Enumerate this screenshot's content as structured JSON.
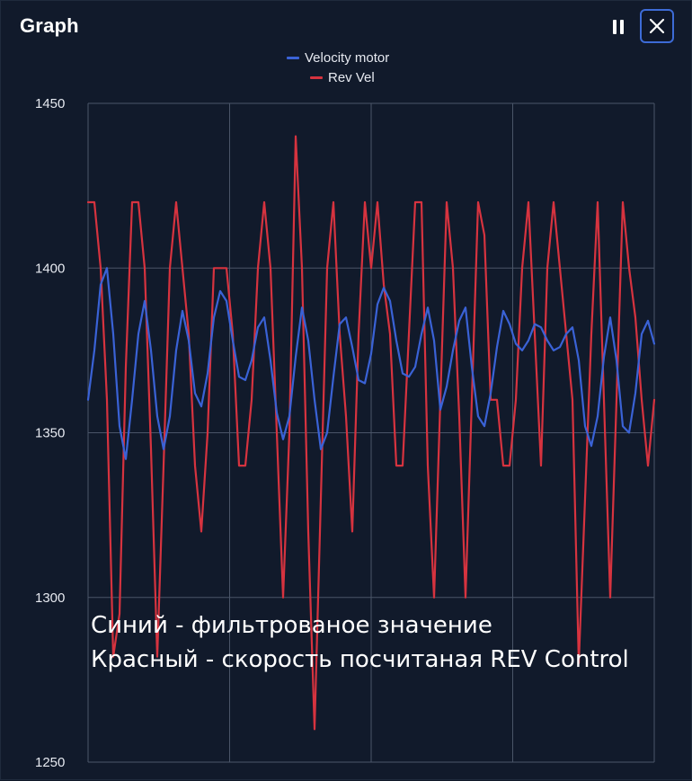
{
  "window": {
    "title": "Graph",
    "pause_icon": "pause-icon",
    "close_icon": "close-icon"
  },
  "annotation_lines": [
    "Синий - фильтрованое значение",
    "Красный - скорость посчитаная REV Control"
  ],
  "chart_data": {
    "type": "line",
    "title": "",
    "xlabel": "",
    "ylabel": "",
    "ylim": [
      1250,
      1450
    ],
    "yticks": [
      1450,
      1400,
      1350,
      1300,
      1250
    ],
    "grid": true,
    "legend_position": "top-center",
    "x_axis_ticks_shown": false,
    "series": [
      {
        "name": "Velocity motor",
        "color": "#3a62d6",
        "points": [
          [
            0,
            1360
          ],
          [
            2,
            1375
          ],
          [
            4,
            1395
          ],
          [
            6,
            1400
          ],
          [
            8,
            1380
          ],
          [
            10,
            1352
          ],
          [
            12,
            1342
          ],
          [
            14,
            1360
          ],
          [
            16,
            1380
          ],
          [
            18,
            1390
          ],
          [
            20,
            1375
          ],
          [
            22,
            1355
          ],
          [
            24,
            1345
          ],
          [
            26,
            1355
          ],
          [
            28,
            1375
          ],
          [
            30,
            1387
          ],
          [
            32,
            1378
          ],
          [
            34,
            1362
          ],
          [
            36,
            1358
          ],
          [
            38,
            1368
          ],
          [
            40,
            1385
          ],
          [
            42,
            1393
          ],
          [
            44,
            1390
          ],
          [
            46,
            1378
          ],
          [
            48,
            1367
          ],
          [
            50,
            1366
          ],
          [
            52,
            1372
          ],
          [
            54,
            1382
          ],
          [
            56,
            1385
          ],
          [
            58,
            1372
          ],
          [
            60,
            1356
          ],
          [
            62,
            1348
          ],
          [
            64,
            1355
          ],
          [
            66,
            1373
          ],
          [
            68,
            1388
          ],
          [
            70,
            1378
          ],
          [
            72,
            1360
          ],
          [
            74,
            1345
          ],
          [
            76,
            1350
          ],
          [
            78,
            1367
          ],
          [
            80,
            1383
          ],
          [
            82,
            1385
          ],
          [
            84,
            1376
          ],
          [
            86,
            1366
          ],
          [
            88,
            1365
          ],
          [
            90,
            1374
          ],
          [
            92,
            1389
          ],
          [
            94,
            1394
          ],
          [
            96,
            1390
          ],
          [
            98,
            1378
          ],
          [
            100,
            1368
          ],
          [
            102,
            1367
          ],
          [
            104,
            1370
          ],
          [
            106,
            1380
          ],
          [
            108,
            1388
          ],
          [
            110,
            1378
          ],
          [
            112,
            1357
          ],
          [
            114,
            1364
          ],
          [
            116,
            1375
          ],
          [
            118,
            1384
          ],
          [
            120,
            1388
          ],
          [
            122,
            1370
          ],
          [
            124,
            1355
          ],
          [
            126,
            1352
          ],
          [
            128,
            1362
          ],
          [
            130,
            1376
          ],
          [
            132,
            1387
          ],
          [
            134,
            1383
          ],
          [
            136,
            1377
          ],
          [
            138,
            1375
          ],
          [
            140,
            1378
          ],
          [
            142,
            1383
          ],
          [
            144,
            1382
          ],
          [
            146,
            1378
          ],
          [
            148,
            1375
          ],
          [
            150,
            1376
          ],
          [
            152,
            1380
          ],
          [
            154,
            1382
          ],
          [
            156,
            1372
          ],
          [
            158,
            1352
          ],
          [
            160,
            1346
          ],
          [
            162,
            1355
          ],
          [
            164,
            1373
          ],
          [
            166,
            1385
          ],
          [
            168,
            1372
          ],
          [
            170,
            1352
          ],
          [
            172,
            1350
          ],
          [
            174,
            1362
          ],
          [
            176,
            1380
          ],
          [
            178,
            1384
          ],
          [
            180,
            1377
          ]
        ]
      },
      {
        "name": "Rev Vel",
        "color": "#d6333f",
        "points": [
          [
            0,
            1420
          ],
          [
            2,
            1420
          ],
          [
            4,
            1400
          ],
          [
            6,
            1360
          ],
          [
            8,
            1282
          ],
          [
            10,
            1295
          ],
          [
            12,
            1370
          ],
          [
            14,
            1420
          ],
          [
            16,
            1420
          ],
          [
            18,
            1400
          ],
          [
            20,
            1345
          ],
          [
            22,
            1282
          ],
          [
            24,
            1340
          ],
          [
            26,
            1400
          ],
          [
            28,
            1420
          ],
          [
            30,
            1400
          ],
          [
            32,
            1380
          ],
          [
            34,
            1340
          ],
          [
            36,
            1320
          ],
          [
            38,
            1350
          ],
          [
            40,
            1400
          ],
          [
            42,
            1400
          ],
          [
            44,
            1400
          ],
          [
            46,
            1380
          ],
          [
            48,
            1340
          ],
          [
            50,
            1340
          ],
          [
            52,
            1360
          ],
          [
            54,
            1400
          ],
          [
            56,
            1420
          ],
          [
            58,
            1400
          ],
          [
            60,
            1350
          ],
          [
            62,
            1300
          ],
          [
            64,
            1350
          ],
          [
            66,
            1440
          ],
          [
            68,
            1400
          ],
          [
            70,
            1320
          ],
          [
            72,
            1260
          ],
          [
            74,
            1330
          ],
          [
            76,
            1400
          ],
          [
            78,
            1420
          ],
          [
            80,
            1380
          ],
          [
            82,
            1355
          ],
          [
            84,
            1320
          ],
          [
            86,
            1380
          ],
          [
            88,
            1420
          ],
          [
            90,
            1400
          ],
          [
            92,
            1420
          ],
          [
            94,
            1395
          ],
          [
            96,
            1380
          ],
          [
            98,
            1340
          ],
          [
            100,
            1340
          ],
          [
            102,
            1380
          ],
          [
            104,
            1420
          ],
          [
            106,
            1420
          ],
          [
            108,
            1340
          ],
          [
            110,
            1300
          ],
          [
            112,
            1360
          ],
          [
            114,
            1420
          ],
          [
            116,
            1400
          ],
          [
            118,
            1355
          ],
          [
            120,
            1300
          ],
          [
            122,
            1360
          ],
          [
            124,
            1420
          ],
          [
            126,
            1410
          ],
          [
            128,
            1360
          ],
          [
            130,
            1360
          ],
          [
            132,
            1340
          ],
          [
            134,
            1340
          ],
          [
            136,
            1360
          ],
          [
            138,
            1400
          ],
          [
            140,
            1420
          ],
          [
            142,
            1380
          ],
          [
            144,
            1340
          ],
          [
            146,
            1400
          ],
          [
            148,
            1420
          ],
          [
            150,
            1400
          ],
          [
            152,
            1380
          ],
          [
            154,
            1360
          ],
          [
            156,
            1280
          ],
          [
            158,
            1330
          ],
          [
            160,
            1380
          ],
          [
            162,
            1420
          ],
          [
            164,
            1360
          ],
          [
            166,
            1300
          ],
          [
            168,
            1360
          ],
          [
            170,
            1420
          ],
          [
            172,
            1400
          ],
          [
            174,
            1385
          ],
          [
            176,
            1360
          ],
          [
            178,
            1340
          ],
          [
            180,
            1360
          ]
        ]
      }
    ]
  }
}
